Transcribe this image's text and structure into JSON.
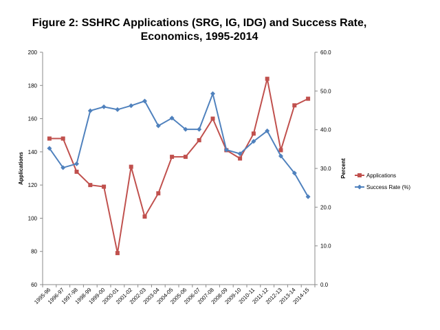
{
  "chart_data": {
    "type": "line",
    "title_line1": "Figure 2: SSHRC Applications (SRG, IG, IDG) and Success Rate,",
    "title_line2": "Economics, 1995-2014",
    "categories": [
      "1995-96",
      "1996-97",
      "1997-98",
      "1998-99",
      "1999-00",
      "2000-01",
      "2001-02",
      "2002-03",
      "2003-04",
      "2004-05",
      "2005-06",
      "2006-07",
      "2007-08",
      "2008-09",
      "2009-10",
      "2010-11",
      "2011-12",
      "2012-13",
      "2013-14",
      "2014-15"
    ],
    "series": [
      {
        "name": "Applications",
        "axis": "left",
        "color": "#c0504d",
        "marker": "square",
        "values": [
          148,
          148,
          128,
          120,
          119,
          79,
          131,
          101,
          115,
          137,
          137,
          147,
          160,
          141,
          136,
          151,
          184,
          141,
          168,
          172
        ]
      },
      {
        "name": "Success Rate (%)",
        "axis": "right",
        "color": "#4f81bd",
        "marker": "diamond",
        "values": [
          35.2,
          30.2,
          31.2,
          44.9,
          45.9,
          45.2,
          46.2,
          47.4,
          41.0,
          43.0,
          40.1,
          40.1,
          49.3,
          34.8,
          33.8,
          37.0,
          39.7,
          33.2,
          28.8,
          22.7
        ]
      }
    ],
    "y_left": {
      "label": "Applications",
      "ylim": [
        60,
        200
      ],
      "ticks": [
        "60",
        "80",
        "100",
        "120",
        "140",
        "160",
        "180",
        "200"
      ]
    },
    "y_right": {
      "label": "Percent",
      "ylim": [
        0,
        60
      ],
      "ticks": [
        "0.0",
        "10.0",
        "20.0",
        "30.0",
        "40.0",
        "50.0",
        "60.0"
      ]
    },
    "grid": false,
    "legend_position": "right"
  }
}
